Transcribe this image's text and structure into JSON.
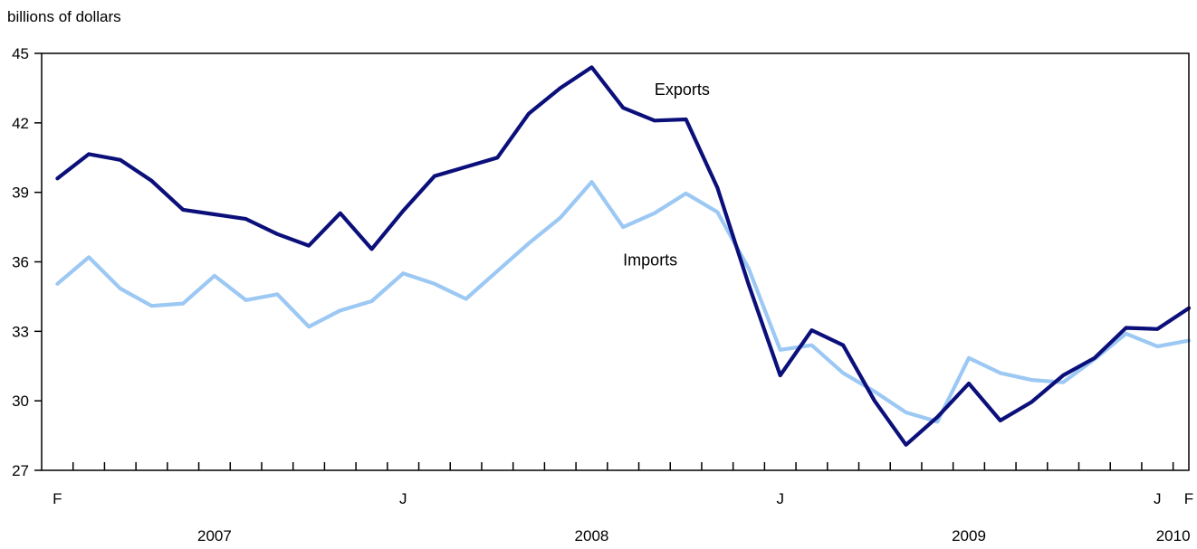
{
  "chart_data": {
    "type": "line",
    "ylabel": "billions of dollars",
    "ylim": [
      27,
      45
    ],
    "yticks": [
      27,
      30,
      33,
      36,
      39,
      42,
      45
    ],
    "x_months": [
      "2007-02",
      "2007-03",
      "2007-04",
      "2007-05",
      "2007-06",
      "2007-07",
      "2007-08",
      "2007-09",
      "2007-10",
      "2007-11",
      "2007-12",
      "2008-01",
      "2008-02",
      "2008-03",
      "2008-04",
      "2008-05",
      "2008-06",
      "2008-07",
      "2008-08",
      "2008-09",
      "2008-10",
      "2008-11",
      "2008-12",
      "2009-01",
      "2009-02",
      "2009-03",
      "2009-04",
      "2009-05",
      "2009-06",
      "2009-07",
      "2009-08",
      "2009-09",
      "2009-10",
      "2009-11",
      "2009-12",
      "2010-01",
      "2010-02"
    ],
    "month_tick_labels": [
      {
        "month": "2007-02",
        "label": "F"
      },
      {
        "month": "2008-01",
        "label": "J"
      },
      {
        "month": "2009-01",
        "label": "J"
      },
      {
        "month": "2010-01",
        "label": "J"
      },
      {
        "month": "2010-02",
        "label": "F"
      }
    ],
    "year_labels": [
      {
        "label": "2007",
        "month": "2007-07"
      },
      {
        "label": "2008",
        "month": "2008-07"
      },
      {
        "label": "2009",
        "month": "2009-07"
      },
      {
        "label": "2010",
        "month": "2010-01"
      }
    ],
    "grid": false,
    "series": [
      {
        "name": "Exports",
        "color": "#0b0f7a",
        "values": [
          39.6,
          40.65,
          40.4,
          39.5,
          38.25,
          38.05,
          37.85,
          37.2,
          36.7,
          38.1,
          36.55,
          38.2,
          39.7,
          40.1,
          40.5,
          42.4,
          43.5,
          44.4,
          42.65,
          42.1,
          42.15,
          39.2,
          35.0,
          31.1,
          33.05,
          32.4,
          30.0,
          28.1,
          29.3,
          30.75,
          29.15,
          29.95,
          31.1,
          31.85,
          33.15,
          33.1,
          34.0
        ]
      },
      {
        "name": "Imports",
        "color": "#9cc8f4",
        "values": [
          35.05,
          36.2,
          34.85,
          34.1,
          34.2,
          35.4,
          34.35,
          34.6,
          33.2,
          33.9,
          34.3,
          35.5,
          35.05,
          34.4,
          35.6,
          36.8,
          37.9,
          39.45,
          37.5,
          38.1,
          38.95,
          38.15,
          35.7,
          32.2,
          32.4,
          31.2,
          30.4,
          29.5,
          29.1,
          31.85,
          31.2,
          30.9,
          30.8,
          31.8,
          32.9,
          32.35,
          32.6
        ]
      }
    ],
    "annotations": [
      {
        "text": "Exports",
        "series": "Exports",
        "month": "2008-09",
        "value": 43.2
      },
      {
        "text": "Imports",
        "series": "Imports",
        "month": "2008-08",
        "value": 35.85
      }
    ]
  }
}
